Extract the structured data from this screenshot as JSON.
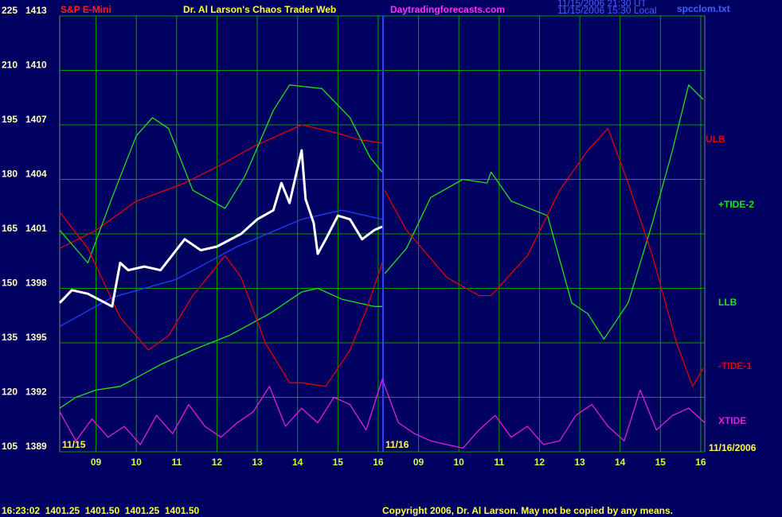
{
  "chart_data": {
    "type": "line",
    "symbol": "S&P E-Mini",
    "title": "Dr. Al Larson's Chaos Trader Web",
    "website": "Daytradingforecasts.com",
    "timestamps": [
      "11/15/2006 21:30 UT",
      "11/15/2006 15:30 Local"
    ],
    "file": "spcclom.txt",
    "grid": true,
    "xlim": [
      0,
      16
    ],
    "xticks": [
      {
        "value": 0.9,
        "label": "09"
      },
      {
        "value": 1.9,
        "label": "10"
      },
      {
        "value": 2.9,
        "label": "11"
      },
      {
        "value": 3.9,
        "label": "12"
      },
      {
        "value": 4.9,
        "label": "13"
      },
      {
        "value": 5.9,
        "label": "14"
      },
      {
        "value": 6.9,
        "label": "15"
      },
      {
        "value": 7.9,
        "label": "16"
      },
      {
        "value": 8.9,
        "label": "09"
      },
      {
        "value": 9.9,
        "label": "10"
      },
      {
        "value": 10.9,
        "label": "11"
      },
      {
        "value": 11.9,
        "label": "12"
      },
      {
        "value": 12.9,
        "label": "13"
      },
      {
        "value": 13.9,
        "label": "14"
      },
      {
        "value": 14.9,
        "label": "15"
      },
      {
        "value": 15.9,
        "label": "16"
      }
    ],
    "ylim": [
      1389,
      1413
    ],
    "yticks": [
      1389,
      1392,
      1395,
      1398,
      1401,
      1404,
      1407,
      1410,
      1413
    ],
    "y2lim": [
      105,
      225
    ],
    "y2ticks": [
      105,
      120,
      135,
      150,
      165,
      180,
      195,
      210,
      225
    ],
    "date_labels": [
      {
        "value": 0,
        "label": "11/15"
      },
      {
        "value": 8.02,
        "label": "11/16"
      }
    ],
    "end_date": "11/16/2006",
    "price": {
      "color": "#ffffff",
      "x": [
        0,
        0.3,
        0.7,
        1.3,
        1.5,
        1.7,
        2.1,
        2.5,
        3.1,
        3.5,
        3.9,
        4.5,
        4.9,
        5.3,
        5.5,
        5.7,
        6.0,
        6.1,
        6.3,
        6.4,
        6.6,
        6.9,
        7.2,
        7.5,
        7.8,
        8.0
      ],
      "values": [
        1397.2,
        1397.9,
        1397.7,
        1397.0,
        1399.4,
        1399.0,
        1399.2,
        1399.0,
        1400.7,
        1400.1,
        1400.3,
        1401.0,
        1401.8,
        1402.3,
        1403.8,
        1402.7,
        1405.6,
        1402.9,
        1401.6,
        1399.9,
        1400.7,
        1402.0,
        1401.8,
        1400.7,
        1401.2,
        1401.4
      ]
    },
    "average": {
      "color": "#2040ff",
      "x": [
        0,
        1.3,
        2.9,
        4.4,
        6.0,
        7.0,
        8.0
      ],
      "values": [
        1395.9,
        1397.5,
        1398.5,
        1400.3,
        1401.8,
        1402.3,
        1401.8
      ]
    },
    "series": [
      {
        "name": "ULB",
        "color": "#e00000",
        "axis": "y2",
        "x": [
          0,
          0.9,
          1.9,
          3.1,
          4.0,
          4.8,
          5.6,
          6.0,
          6.8,
          7.4,
          8.0
        ],
        "values": [
          161,
          166,
          174,
          179,
          184,
          189,
          193,
          195,
          193,
          191,
          190
        ]
      },
      {
        "name": "+TIDE-2",
        "color": "#20e020",
        "axis": "y2",
        "x": [
          0,
          0.7,
          1.3,
          1.9,
          2.3,
          2.7,
          3.3,
          4.1,
          4.6,
          5.3,
          5.7,
          6.5,
          7.2,
          7.7,
          8.0,
          8.02,
          8.06,
          8.6,
          9.2,
          10.0,
          10.6,
          10.7,
          11.2,
          12.1,
          12.7,
          13.1,
          13.5,
          14.1,
          14.7,
          15.2,
          15.6,
          15.96
        ],
        "values": [
          166,
          157,
          175,
          192,
          197,
          194,
          177,
          172,
          181,
          199,
          206,
          205,
          197,
          186,
          182,
          null,
          154,
          161,
          175,
          180,
          179,
          182,
          174,
          170,
          146,
          143,
          136,
          146,
          168,
          188,
          206,
          202
        ]
      },
      {
        "name": "LLB",
        "color": "#20e020",
        "axis": "y2",
        "x": [
          0,
          0.4,
          0.9,
          1.5,
          2.5,
          3.3,
          4.2,
          5.2,
          6.0,
          6.4,
          7.0,
          7.8,
          8.0
        ],
        "values": [
          117,
          120,
          122,
          123,
          129,
          133,
          137,
          143,
          149,
          150,
          147,
          145,
          145
        ]
      },
      {
        "name": "-TIDE-1",
        "color": "#e00000",
        "axis": "y2",
        "x": [
          0,
          0.7,
          1.5,
          2.2,
          2.7,
          3.3,
          4.1,
          4.5,
          5.1,
          5.7,
          6.0,
          6.6,
          7.2,
          7.6,
          8.0,
          8.02,
          8.06,
          8.6,
          9.6,
          10.4,
          10.7,
          11.6,
          12.4,
          13.1,
          13.6,
          14.1,
          14.7,
          15.3,
          15.7,
          15.96
        ],
        "values": [
          171,
          161,
          142,
          133,
          137,
          148,
          159,
          153,
          135,
          124,
          124,
          123,
          133,
          144,
          157,
          null,
          177,
          166,
          153,
          148,
          148,
          159,
          177,
          188,
          194,
          179,
          159,
          135,
          123,
          128
        ]
      },
      {
        "name": "XTIDE",
        "color": "#e020e0",
        "axis": "y2",
        "x": [
          0,
          0.4,
          0.8,
          1.2,
          1.6,
          2.0,
          2.4,
          2.8,
          3.2,
          3.6,
          4.0,
          4.4,
          4.8,
          5.2,
          5.6,
          6.0,
          6.4,
          6.8,
          7.2,
          7.6,
          8.0,
          8.4,
          8.8,
          9.2,
          9.6,
          10.0,
          10.4,
          10.8,
          11.2,
          11.6,
          12.0,
          12.4,
          12.8,
          13.2,
          13.6,
          14.0,
          14.4,
          14.8,
          15.2,
          15.6,
          16.0
        ],
        "values": [
          116,
          108,
          114,
          109,
          112,
          107,
          115,
          110,
          118,
          112,
          109,
          113,
          116,
          123,
          112,
          117,
          113,
          120,
          118,
          111,
          125,
          113,
          110,
          108,
          107,
          106,
          111,
          115,
          109,
          112,
          107,
          108,
          115,
          118,
          112,
          108,
          122,
          111,
          115,
          117,
          113
        ]
      }
    ],
    "status_line": "16:23:02  1401.25  1401.50  1401.25  1401.50",
    "copyright": "Copyright 2006, Dr. Al Larson. May not be copied by any means."
  }
}
